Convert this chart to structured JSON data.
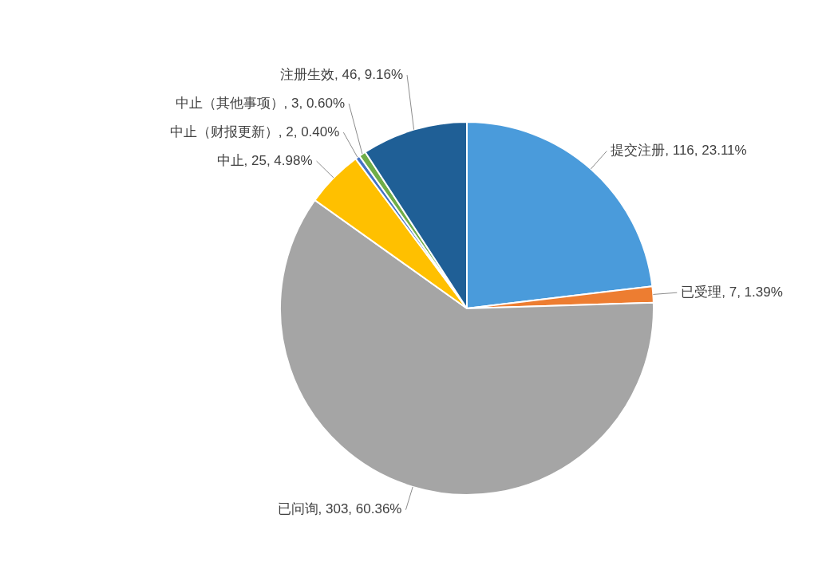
{
  "chart_data": {
    "type": "pie",
    "categories": [
      "提交注册",
      "已受理",
      "已问询",
      "中止",
      "中止（财报更新）",
      "中止（其他事项）",
      "注册生效"
    ],
    "values": [
      116,
      7,
      303,
      25,
      2,
      3,
      46
    ],
    "value_labels": [
      "116, 23.11%",
      "7, 1.39%",
      "303, 60.36%",
      "25, 4.98%",
      "2, 0.40%",
      "3, 0.60%",
      "46, 9.16%"
    ],
    "colors": [
      "#4a9bdb",
      "#ed7d31",
      "#a5a5a5",
      "#ffc000",
      "#4472c4",
      "#70ad47",
      "#1f5f96"
    ],
    "legend": false
  }
}
